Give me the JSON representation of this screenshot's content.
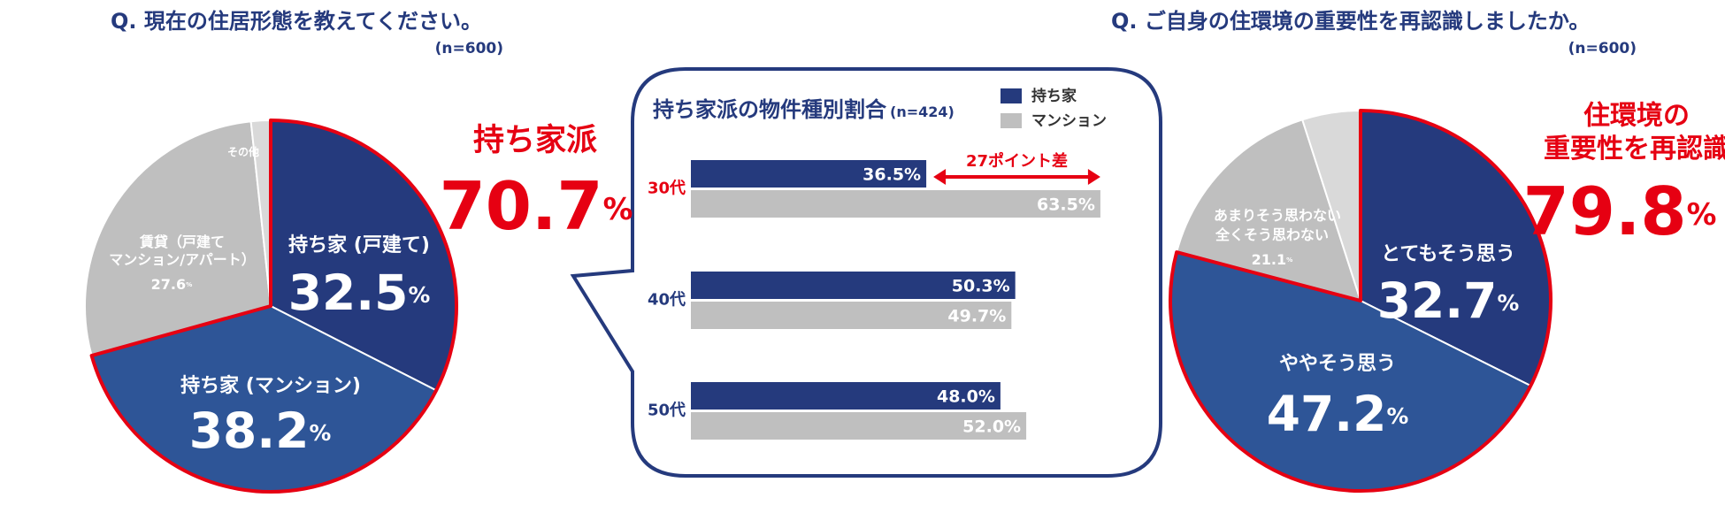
{
  "chart_data": [
    {
      "type": "pie",
      "title": "Q. 現在の住居形態を教えてください。",
      "subtitle": "(n=600)",
      "categories": [
        "持ち家 (戸建て)",
        "持ち家 (マンション)",
        "賃貸（戸建て\nマンション/アパート）",
        "その他"
      ],
      "values": [
        32.5,
        38.2,
        27.6,
        1.7
      ],
      "value_labels": [
        "32.5%",
        "38.2%",
        "27.6%",
        null
      ],
      "colors": [
        "#253a7d",
        "#2e5597",
        "#bfbfbf",
        "#d9d9d9"
      ],
      "highlight": [
        0,
        1
      ],
      "highlight_color": "#e60012",
      "annotations": [
        "持ち家派",
        "70.7%"
      ]
    },
    {
      "type": "bar",
      "orientation": "horizontal",
      "title": "持ち家派の物件種別割合",
      "subtitle": "(n=424)",
      "categories": [
        "30代",
        "40代",
        "50代"
      ],
      "category_colors": [
        "#e60012",
        "#253a7d",
        "#253a7d"
      ],
      "series": [
        {
          "name": "持ち家",
          "color": "#253a7d",
          "values": [
            36.5,
            50.3,
            48.0
          ],
          "value_labels": [
            "36.5%",
            "50.3%",
            "48.0%"
          ]
        },
        {
          "name": "マンション",
          "color": "#bfbfbf",
          "values": [
            63.5,
            49.7,
            52.0
          ],
          "value_labels": [
            "63.5%",
            "49.7%",
            "52.0%"
          ]
        }
      ],
      "xlim": [
        0,
        100
      ],
      "annotation": "27ポイント差",
      "annotation_color": "#e60012"
    },
    {
      "type": "pie",
      "title": "Q. ご自身の住環境の重要性を再認識しましたか。",
      "subtitle": "(n=600)",
      "categories": [
        "とてもそう思う",
        "ややそう思う",
        "あまりそう思わない",
        "全くそう思わない"
      ],
      "values": [
        32.7,
        47.2,
        16.1,
        5.0
      ],
      "value_labels": [
        "32.7%",
        "47.2%",
        null,
        null
      ],
      "colors": [
        "#253a7d",
        "#2e5597",
        "#bfbfbf",
        "#d9d9d9"
      ],
      "highlight": [
        0,
        1
      ],
      "highlight_color": "#e60012",
      "annotations": [
        "住環境の\n重要性を再認識",
        "79.8%",
        "21.1%"
      ]
    }
  ]
}
